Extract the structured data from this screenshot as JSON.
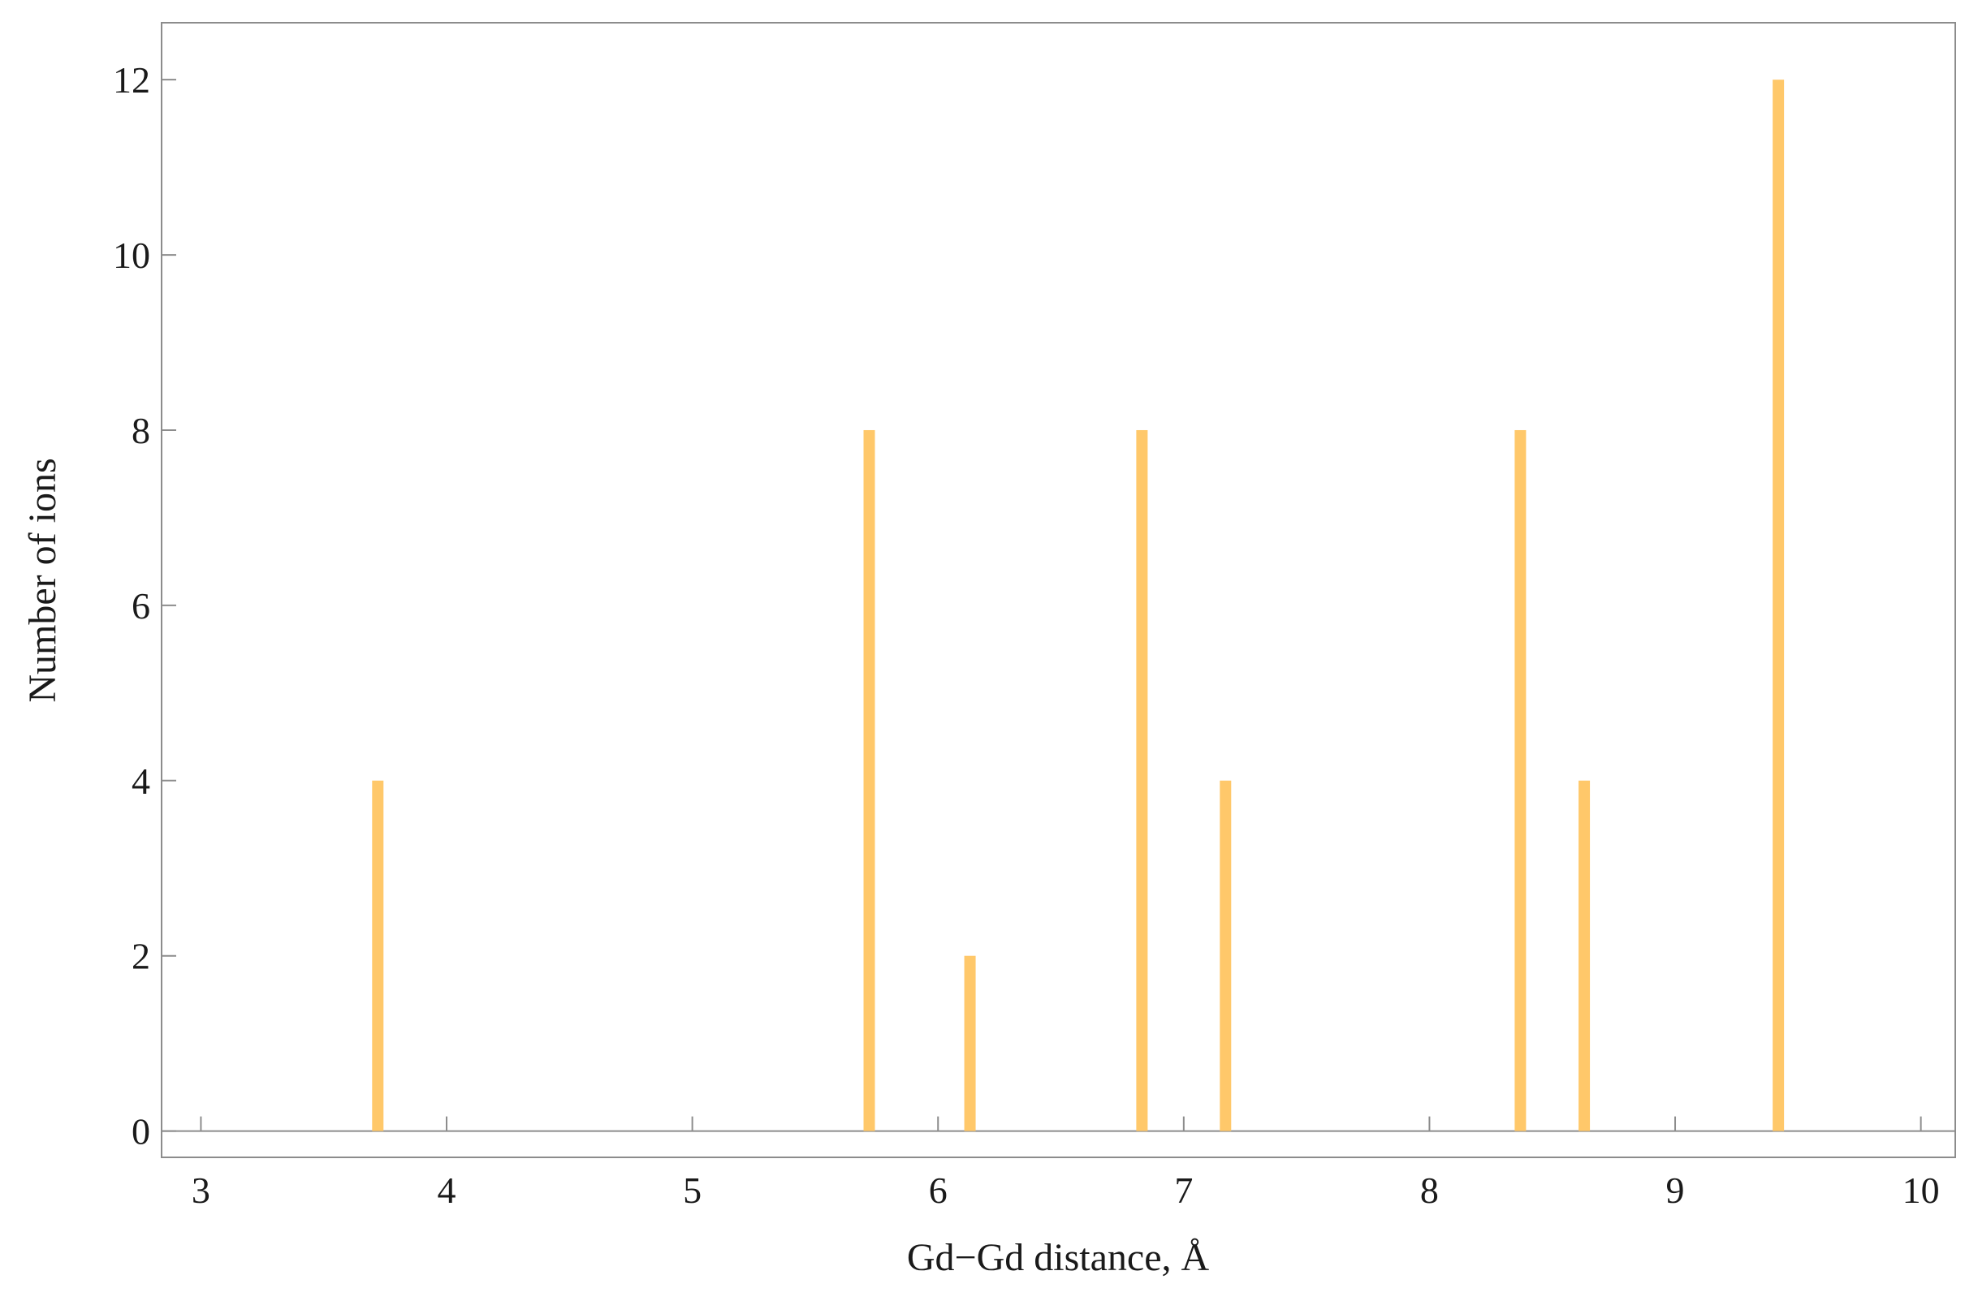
{
  "chart_data": {
    "type": "bar",
    "x_label": "Gd−Gd distance, Å",
    "y_label": "Number of ions",
    "x": [
      3.72,
      5.72,
      6.13,
      6.83,
      7.17,
      8.37,
      8.63,
      9.42
    ],
    "values": [
      4,
      8,
      2,
      8,
      4,
      8,
      4,
      12
    ],
    "color": "#ffc86a",
    "xlim": [
      2.84,
      10.14
    ],
    "xticks": [
      3,
      4,
      5,
      6,
      7,
      8,
      9,
      10
    ],
    "ylim": [
      -0.3,
      12.65
    ],
    "yticks": [
      0,
      2,
      4,
      6,
      8,
      10,
      12
    ],
    "grid": false
  }
}
